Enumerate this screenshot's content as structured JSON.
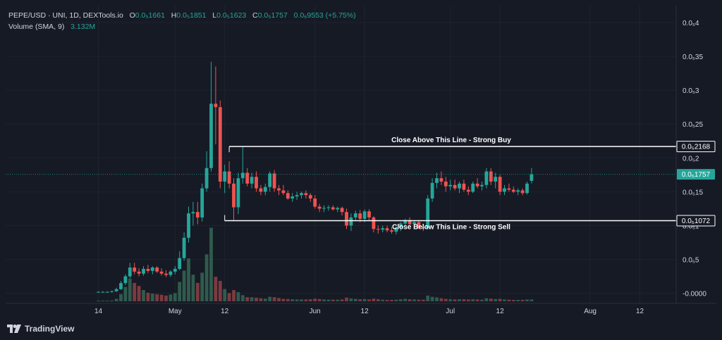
{
  "legend": {
    "symbol": "PEPE/USD · UNI, 1D, DEXTools.io",
    "o_label": "O",
    "o_value": "0.0₅1661",
    "h_label": "H",
    "h_value": "0.0₅1851",
    "l_label": "L",
    "l_value": "0.0₅1623",
    "c_label": "C",
    "c_value": "0.0₅1757",
    "change": "0.0₆9553 (+5.75%)",
    "volume_label": "Volume (SMA, 9)",
    "volume_value": "3.132M"
  },
  "logo_text": "TradingView",
  "colors": {
    "background": "#161a25",
    "up": "#26a69a",
    "down": "#ef5350",
    "vol_up": "#2f5b4d",
    "vol_down": "#7d3a3f",
    "text": "#d1d4dc",
    "line": "#ffffff"
  },
  "chart_data": {
    "type": "candlestick",
    "series_name": "PEPE/USD",
    "y_unit_note": "price in units of 1e-5 USD",
    "ylim": [
      -0.015,
      0.425
    ],
    "y_ticks": [
      {
        "value": 0.4,
        "label": "0.0₅4"
      },
      {
        "value": 0.35,
        "label": "0.0₅35"
      },
      {
        "value": 0.3,
        "label": "0.0₅3"
      },
      {
        "value": 0.25,
        "label": "0.0₅25"
      },
      {
        "value": 0.2,
        "label": "0.0₅2"
      },
      {
        "value": 0.15,
        "label": "0.0₅15"
      },
      {
        "value": 0.1,
        "label": "0.0₅1"
      },
      {
        "value": 0.05,
        "label": "0.0₆5"
      },
      {
        "value": 0.0,
        "label": "-0.0000"
      }
    ],
    "x_start": "2023-04-14",
    "x_ticks": [
      {
        "date": "2023-04-14",
        "label": "14"
      },
      {
        "date": "2023-05-01",
        "label": "May"
      },
      {
        "date": "2023-05-12",
        "label": "12"
      },
      {
        "date": "2023-06-01",
        "label": "Jun"
      },
      {
        "date": "2023-06-12",
        "label": "12"
      },
      {
        "date": "2023-07-01",
        "label": "Jul"
      },
      {
        "date": "2023-07-12",
        "label": "12"
      },
      {
        "date": "2023-08-01",
        "label": "Aug"
      },
      {
        "date": "2023-08-12",
        "label": "12"
      }
    ],
    "last_price": {
      "value": 0.1757,
      "label": "0.0₅1757"
    },
    "annotations": [
      {
        "label": "Close Above This Line - Strong Buy",
        "value": 0.2168,
        "price_label": "0.0₅2168",
        "from_date": "2023-05-13"
      },
      {
        "label": "Close Below This Line - Strong Sell",
        "value": 0.1072,
        "price_label": "0.0₅1072",
        "from_date": "2023-05-12"
      }
    ],
    "candles": [
      {
        "date": "2023-04-14",
        "o": 0.002,
        "h": 0.003,
        "l": 0.001,
        "c": 0.002,
        "v": 0.3
      },
      {
        "date": "2023-04-15",
        "o": 0.002,
        "h": 0.003,
        "l": 0.001,
        "c": 0.002,
        "v": 0.3
      },
      {
        "date": "2023-04-16",
        "o": 0.002,
        "h": 0.003,
        "l": 0.001,
        "c": 0.002,
        "v": 0.3
      },
      {
        "date": "2023-04-17",
        "o": 0.002,
        "h": 0.004,
        "l": 0.001,
        "c": 0.003,
        "v": 0.4
      },
      {
        "date": "2023-04-18",
        "o": 0.003,
        "h": 0.008,
        "l": 0.002,
        "c": 0.006,
        "v": 1.2
      },
      {
        "date": "2023-04-19",
        "o": 0.006,
        "h": 0.018,
        "l": 0.005,
        "c": 0.015,
        "v": 3.5
      },
      {
        "date": "2023-04-20",
        "o": 0.015,
        "h": 0.028,
        "l": 0.012,
        "c": 0.025,
        "v": 7.0
      },
      {
        "date": "2023-04-21",
        "o": 0.025,
        "h": 0.045,
        "l": 0.022,
        "c": 0.038,
        "v": 11.0
      },
      {
        "date": "2023-04-22",
        "o": 0.038,
        "h": 0.045,
        "l": 0.028,
        "c": 0.032,
        "v": 9.0
      },
      {
        "date": "2023-04-23",
        "o": 0.032,
        "h": 0.037,
        "l": 0.025,
        "c": 0.029,
        "v": 7.5
      },
      {
        "date": "2023-04-24",
        "o": 0.029,
        "h": 0.04,
        "l": 0.026,
        "c": 0.036,
        "v": 5.5
      },
      {
        "date": "2023-04-25",
        "o": 0.036,
        "h": 0.042,
        "l": 0.03,
        "c": 0.033,
        "v": 4.2
      },
      {
        "date": "2023-04-26",
        "o": 0.033,
        "h": 0.04,
        "l": 0.028,
        "c": 0.038,
        "v": 3.8
      },
      {
        "date": "2023-04-27",
        "o": 0.038,
        "h": 0.04,
        "l": 0.03,
        "c": 0.032,
        "v": 3.5
      },
      {
        "date": "2023-04-28",
        "o": 0.032,
        "h": 0.037,
        "l": 0.026,
        "c": 0.029,
        "v": 3.2
      },
      {
        "date": "2023-04-29",
        "o": 0.029,
        "h": 0.034,
        "l": 0.024,
        "c": 0.027,
        "v": 2.8
      },
      {
        "date": "2023-04-30",
        "o": 0.027,
        "h": 0.034,
        "l": 0.024,
        "c": 0.032,
        "v": 3.3
      },
      {
        "date": "2023-05-01",
        "o": 0.032,
        "h": 0.04,
        "l": 0.028,
        "c": 0.036,
        "v": 4.0
      },
      {
        "date": "2023-05-02",
        "o": 0.036,
        "h": 0.062,
        "l": 0.034,
        "c": 0.052,
        "v": 9.5
      },
      {
        "date": "2023-05-03",
        "o": 0.052,
        "h": 0.09,
        "l": 0.048,
        "c": 0.082,
        "v": 15.0
      },
      {
        "date": "2023-05-04",
        "o": 0.082,
        "h": 0.128,
        "l": 0.075,
        "c": 0.118,
        "v": 21.0
      },
      {
        "date": "2023-05-05",
        "o": 0.118,
        "h": 0.135,
        "l": 0.1,
        "c": 0.12,
        "v": 13.0
      },
      {
        "date": "2023-05-06",
        "o": 0.12,
        "h": 0.135,
        "l": 0.102,
        "c": 0.112,
        "v": 9.0
      },
      {
        "date": "2023-05-07",
        "o": 0.112,
        "h": 0.162,
        "l": 0.106,
        "c": 0.155,
        "v": 14.0
      },
      {
        "date": "2023-05-08",
        "o": 0.155,
        "h": 0.21,
        "l": 0.15,
        "c": 0.185,
        "v": 23.0
      },
      {
        "date": "2023-05-09",
        "o": 0.185,
        "h": 0.342,
        "l": 0.18,
        "c": 0.28,
        "v": 36.0
      },
      {
        "date": "2023-05-10",
        "o": 0.28,
        "h": 0.335,
        "l": 0.22,
        "c": 0.275,
        "v": 12.0
      },
      {
        "date": "2023-05-11",
        "o": 0.275,
        "h": 0.285,
        "l": 0.155,
        "c": 0.165,
        "v": 10.0
      },
      {
        "date": "2023-05-12",
        "o": 0.165,
        "h": 0.19,
        "l": 0.148,
        "c": 0.18,
        "v": 6.0
      },
      {
        "date": "2023-05-13",
        "o": 0.18,
        "h": 0.195,
        "l": 0.155,
        "c": 0.162,
        "v": 4.0
      },
      {
        "date": "2023-05-14",
        "o": 0.162,
        "h": 0.17,
        "l": 0.108,
        "c": 0.127,
        "v": 5.5
      },
      {
        "date": "2023-05-15",
        "o": 0.127,
        "h": 0.178,
        "l": 0.117,
        "c": 0.17,
        "v": 4.5
      },
      {
        "date": "2023-05-16",
        "o": 0.17,
        "h": 0.217,
        "l": 0.162,
        "c": 0.178,
        "v": 3.0
      },
      {
        "date": "2023-05-17",
        "o": 0.178,
        "h": 0.185,
        "l": 0.158,
        "c": 0.162,
        "v": 2.0
      },
      {
        "date": "2023-05-18",
        "o": 0.162,
        "h": 0.178,
        "l": 0.155,
        "c": 0.172,
        "v": 2.0
      },
      {
        "date": "2023-05-19",
        "o": 0.172,
        "h": 0.18,
        "l": 0.15,
        "c": 0.155,
        "v": 1.8
      },
      {
        "date": "2023-05-20",
        "o": 0.155,
        "h": 0.16,
        "l": 0.145,
        "c": 0.15,
        "v": 1.5
      },
      {
        "date": "2023-05-21",
        "o": 0.15,
        "h": 0.162,
        "l": 0.145,
        "c": 0.157,
        "v": 1.3
      },
      {
        "date": "2023-05-22",
        "o": 0.157,
        "h": 0.18,
        "l": 0.15,
        "c": 0.177,
        "v": 2.2
      },
      {
        "date": "2023-05-23",
        "o": 0.177,
        "h": 0.182,
        "l": 0.15,
        "c": 0.155,
        "v": 2.0
      },
      {
        "date": "2023-05-24",
        "o": 0.155,
        "h": 0.16,
        "l": 0.145,
        "c": 0.152,
        "v": 1.6
      },
      {
        "date": "2023-05-25",
        "o": 0.152,
        "h": 0.16,
        "l": 0.145,
        "c": 0.148,
        "v": 1.2
      },
      {
        "date": "2023-05-26",
        "o": 0.148,
        "h": 0.152,
        "l": 0.138,
        "c": 0.14,
        "v": 1.1
      },
      {
        "date": "2023-05-27",
        "o": 0.14,
        "h": 0.148,
        "l": 0.135,
        "c": 0.143,
        "v": 1.0
      },
      {
        "date": "2023-05-28",
        "o": 0.143,
        "h": 0.15,
        "l": 0.138,
        "c": 0.145,
        "v": 0.9
      },
      {
        "date": "2023-05-29",
        "o": 0.145,
        "h": 0.15,
        "l": 0.14,
        "c": 0.148,
        "v": 0.9
      },
      {
        "date": "2023-05-30",
        "o": 0.148,
        "h": 0.152,
        "l": 0.14,
        "c": 0.145,
        "v": 0.9
      },
      {
        "date": "2023-05-31",
        "o": 0.145,
        "h": 0.148,
        "l": 0.135,
        "c": 0.14,
        "v": 1.0
      },
      {
        "date": "2023-06-01",
        "o": 0.14,
        "h": 0.145,
        "l": 0.125,
        "c": 0.128,
        "v": 1.3
      },
      {
        "date": "2023-06-02",
        "o": 0.128,
        "h": 0.132,
        "l": 0.12,
        "c": 0.125,
        "v": 1.1
      },
      {
        "date": "2023-06-03",
        "o": 0.125,
        "h": 0.13,
        "l": 0.12,
        "c": 0.126,
        "v": 0.9
      },
      {
        "date": "2023-06-04",
        "o": 0.126,
        "h": 0.13,
        "l": 0.122,
        "c": 0.127,
        "v": 0.8
      },
      {
        "date": "2023-06-05",
        "o": 0.127,
        "h": 0.13,
        "l": 0.122,
        "c": 0.124,
        "v": 0.8
      },
      {
        "date": "2023-06-06",
        "o": 0.124,
        "h": 0.128,
        "l": 0.12,
        "c": 0.126,
        "v": 0.8
      },
      {
        "date": "2023-06-07",
        "o": 0.126,
        "h": 0.128,
        "l": 0.115,
        "c": 0.12,
        "v": 0.9
      },
      {
        "date": "2023-06-08",
        "o": 0.12,
        "h": 0.125,
        "l": 0.095,
        "c": 0.1,
        "v": 1.8
      },
      {
        "date": "2023-06-09",
        "o": 0.1,
        "h": 0.118,
        "l": 0.092,
        "c": 0.112,
        "v": 1.4
      },
      {
        "date": "2023-06-10",
        "o": 0.112,
        "h": 0.122,
        "l": 0.108,
        "c": 0.118,
        "v": 1.2
      },
      {
        "date": "2023-06-11",
        "o": 0.118,
        "h": 0.123,
        "l": 0.105,
        "c": 0.11,
        "v": 1.0
      },
      {
        "date": "2023-06-12",
        "o": 0.11,
        "h": 0.124,
        "l": 0.105,
        "c": 0.121,
        "v": 1.1
      },
      {
        "date": "2023-06-13",
        "o": 0.121,
        "h": 0.124,
        "l": 0.108,
        "c": 0.112,
        "v": 0.9
      },
      {
        "date": "2023-06-14",
        "o": 0.112,
        "h": 0.114,
        "l": 0.09,
        "c": 0.095,
        "v": 1.3
      },
      {
        "date": "2023-06-15",
        "o": 0.095,
        "h": 0.1,
        "l": 0.088,
        "c": 0.094,
        "v": 1.0
      },
      {
        "date": "2023-06-16",
        "o": 0.094,
        "h": 0.1,
        "l": 0.09,
        "c": 0.096,
        "v": 0.8
      },
      {
        "date": "2023-06-17",
        "o": 0.096,
        "h": 0.1,
        "l": 0.09,
        "c": 0.093,
        "v": 0.7
      },
      {
        "date": "2023-06-18",
        "o": 0.093,
        "h": 0.098,
        "l": 0.088,
        "c": 0.091,
        "v": 0.7
      },
      {
        "date": "2023-06-19",
        "o": 0.091,
        "h": 0.099,
        "l": 0.087,
        "c": 0.097,
        "v": 0.8
      },
      {
        "date": "2023-06-20",
        "o": 0.097,
        "h": 0.105,
        "l": 0.092,
        "c": 0.103,
        "v": 1.0
      },
      {
        "date": "2023-06-21",
        "o": 0.103,
        "h": 0.11,
        "l": 0.1,
        "c": 0.108,
        "v": 1.2
      },
      {
        "date": "2023-06-22",
        "o": 0.108,
        "h": 0.112,
        "l": 0.1,
        "c": 0.102,
        "v": 1.0
      },
      {
        "date": "2023-06-23",
        "o": 0.102,
        "h": 0.108,
        "l": 0.098,
        "c": 0.105,
        "v": 0.9
      },
      {
        "date": "2023-06-24",
        "o": 0.105,
        "h": 0.108,
        "l": 0.095,
        "c": 0.097,
        "v": 0.8
      },
      {
        "date": "2023-06-25",
        "o": 0.097,
        "h": 0.1,
        "l": 0.092,
        "c": 0.096,
        "v": 0.8
      },
      {
        "date": "2023-06-26",
        "o": 0.096,
        "h": 0.145,
        "l": 0.094,
        "c": 0.14,
        "v": 2.8
      },
      {
        "date": "2023-06-27",
        "o": 0.14,
        "h": 0.17,
        "l": 0.135,
        "c": 0.163,
        "v": 2.2
      },
      {
        "date": "2023-06-28",
        "o": 0.163,
        "h": 0.178,
        "l": 0.155,
        "c": 0.17,
        "v": 1.9
      },
      {
        "date": "2023-06-29",
        "o": 0.17,
        "h": 0.18,
        "l": 0.16,
        "c": 0.165,
        "v": 1.5
      },
      {
        "date": "2023-06-30",
        "o": 0.165,
        "h": 0.172,
        "l": 0.15,
        "c": 0.158,
        "v": 1.2
      },
      {
        "date": "2023-07-01",
        "o": 0.158,
        "h": 0.168,
        "l": 0.152,
        "c": 0.16,
        "v": 1.0
      },
      {
        "date": "2023-07-02",
        "o": 0.16,
        "h": 0.168,
        "l": 0.152,
        "c": 0.155,
        "v": 0.9
      },
      {
        "date": "2023-07-03",
        "o": 0.155,
        "h": 0.165,
        "l": 0.148,
        "c": 0.162,
        "v": 1.0
      },
      {
        "date": "2023-07-04",
        "o": 0.162,
        "h": 0.168,
        "l": 0.15,
        "c": 0.153,
        "v": 1.0
      },
      {
        "date": "2023-07-05",
        "o": 0.153,
        "h": 0.158,
        "l": 0.145,
        "c": 0.15,
        "v": 0.9
      },
      {
        "date": "2023-07-06",
        "o": 0.15,
        "h": 0.165,
        "l": 0.148,
        "c": 0.162,
        "v": 1.0
      },
      {
        "date": "2023-07-07",
        "o": 0.162,
        "h": 0.17,
        "l": 0.155,
        "c": 0.158,
        "v": 0.9
      },
      {
        "date": "2023-07-08",
        "o": 0.158,
        "h": 0.165,
        "l": 0.152,
        "c": 0.16,
        "v": 0.8
      },
      {
        "date": "2023-07-09",
        "o": 0.16,
        "h": 0.185,
        "l": 0.155,
        "c": 0.18,
        "v": 1.5
      },
      {
        "date": "2023-07-10",
        "o": 0.18,
        "h": 0.185,
        "l": 0.16,
        "c": 0.165,
        "v": 1.3
      },
      {
        "date": "2023-07-11",
        "o": 0.165,
        "h": 0.178,
        "l": 0.155,
        "c": 0.172,
        "v": 1.1
      },
      {
        "date": "2023-07-12",
        "o": 0.172,
        "h": 0.175,
        "l": 0.145,
        "c": 0.15,
        "v": 1.2
      },
      {
        "date": "2023-07-13",
        "o": 0.15,
        "h": 0.16,
        "l": 0.145,
        "c": 0.155,
        "v": 0.9
      },
      {
        "date": "2023-07-14",
        "o": 0.155,
        "h": 0.162,
        "l": 0.15,
        "c": 0.153,
        "v": 0.8
      },
      {
        "date": "2023-07-15",
        "o": 0.153,
        "h": 0.158,
        "l": 0.148,
        "c": 0.15,
        "v": 0.7
      },
      {
        "date": "2023-07-16",
        "o": 0.15,
        "h": 0.155,
        "l": 0.145,
        "c": 0.152,
        "v": 0.7
      },
      {
        "date": "2023-07-17",
        "o": 0.152,
        "h": 0.155,
        "l": 0.145,
        "c": 0.148,
        "v": 0.7
      },
      {
        "date": "2023-07-18",
        "o": 0.148,
        "h": 0.165,
        "l": 0.146,
        "c": 0.162,
        "v": 0.9
      },
      {
        "date": "2023-07-19",
        "o": 0.1661,
        "h": 0.1851,
        "l": 0.1623,
        "c": 0.1757,
        "v": 0.9
      }
    ]
  }
}
